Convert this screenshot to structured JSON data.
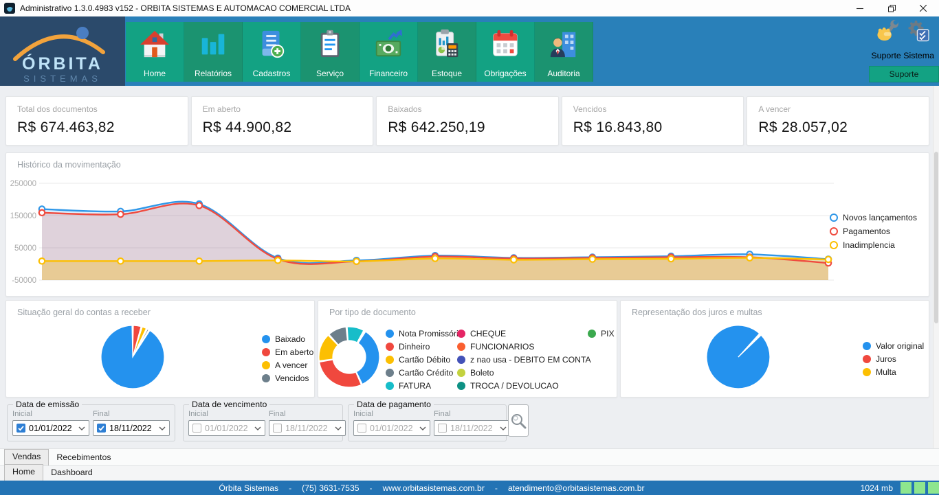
{
  "window": {
    "title": "Administrativo 1.3.0.4983 v152 - ORBITA SISTEMAS E AUTOMACAO COMERCIAL LTDA"
  },
  "header": {
    "logo": {
      "name": "ÓRBITA",
      "tagline": "SISTEMAS"
    },
    "nav": [
      {
        "id": "home",
        "label": "Home"
      },
      {
        "id": "relatorios",
        "label": "Relatórios"
      },
      {
        "id": "cadastros",
        "label": "Cadastros"
      },
      {
        "id": "servico",
        "label": "Serviço"
      },
      {
        "id": "financeiro",
        "label": "Financeiro"
      },
      {
        "id": "estoque",
        "label": "Estoque"
      },
      {
        "id": "obrigacoes",
        "label": "Obrigações"
      },
      {
        "id": "auditoria",
        "label": "Auditoria"
      }
    ],
    "support": {
      "label": "Suporte Sistema",
      "button": "Suporte"
    }
  },
  "kpis": [
    {
      "label": "Total dos documentos",
      "value": "R$ 674.463,82"
    },
    {
      "label": "Em aberto",
      "value": "R$ 44.900,82"
    },
    {
      "label": "Baixados",
      "value": "R$ 642.250,19"
    },
    {
      "label": "Vencidos",
      "value": "R$ 16.843,80"
    },
    {
      "label": "A vencer",
      "value": "R$ 28.057,02"
    }
  ],
  "chart_data": [
    {
      "type": "line",
      "title": "Histórico da movimentação",
      "x": [
        1,
        2,
        3,
        4,
        5,
        6,
        7,
        8,
        9,
        10,
        11
      ],
      "x_labels_shown": false,
      "series": [
        {
          "name": "Novos lançamentos",
          "color": "#2f97e8",
          "fill": "rgba(47,151,232,0.17)",
          "values": [
            170000,
            163000,
            186000,
            18000,
            11000,
            26000,
            19000,
            21000,
            24000,
            30000,
            15000
          ]
        },
        {
          "name": "Pagamentos",
          "color": "#ef4b3f",
          "fill": "rgba(239,75,63,0.17)",
          "values": [
            159000,
            154000,
            181000,
            15000,
            8000,
            23000,
            17000,
            19000,
            21000,
            21000,
            3000
          ]
        },
        {
          "name": "Inadimplencia",
          "color": "#fcbf02",
          "fill": "rgba(252,191,2,0.32)",
          "values": [
            9000,
            9000,
            9000,
            11000,
            8000,
            17000,
            13000,
            15000,
            16000,
            19000,
            14000
          ]
        }
      ],
      "ylim": [
        -50000,
        250000
      ],
      "yticks": [
        250000,
        150000,
        50000,
        -50000
      ],
      "grid": true,
      "legend_position": "right"
    },
    {
      "type": "pie",
      "title": "Situação geral do contas a receber",
      "slices": [
        {
          "label": "Baixado",
          "color": "#2492ee",
          "pct": 91.2
        },
        {
          "label": "Em aberto",
          "color": "#f0483e",
          "pct": 4.6
        },
        {
          "label": "A vencer",
          "color": "#fcbf02",
          "pct": 2.8
        },
        {
          "label": "Vencidos",
          "color": "#6d7f8b",
          "pct": 1.4
        }
      ],
      "draw_order": [
        1,
        2,
        3,
        0
      ],
      "start_angle": -90,
      "legend_position": "right"
    },
    {
      "type": "donut",
      "title": "Por tipo de documento",
      "slices": [
        {
          "label": "Nota Promissória",
          "color": "#2492ee",
          "pct": 34.0
        },
        {
          "label": "Dinheiro",
          "color": "#f0483e",
          "pct": 29.2
        },
        {
          "label": "Cartão Débito",
          "color": "#fcbf02",
          "pct": 15.3
        },
        {
          "label": "Cartão Crédito",
          "color": "#6d7f8b",
          "pct": 10.4
        },
        {
          "label": "FATURA",
          "color": "#17bdc9",
          "pct": 9.5
        },
        {
          "label": "CHEQUE",
          "color": "#e52565",
          "pct": 0.6
        },
        {
          "label": "FUNCIONARIOS",
          "color": "#fa5f30",
          "pct": 0
        },
        {
          "label": "z nao usa - DEBITO EM CONTA",
          "color": "#4352b8",
          "pct": 0
        },
        {
          "label": "Boleto",
          "color": "#c3d23f",
          "pct": 0
        },
        {
          "label": "TROCA / DEVOLUCAO",
          "color": "#0d9184",
          "pct": 0
        },
        {
          "label": "PIX",
          "color": "#3ba94e",
          "pct": 0
        }
      ],
      "draw_order": [
        4,
        5,
        0,
        1,
        2,
        3
      ],
      "legend_columns": [
        [
          0,
          1,
          2,
          3,
          4
        ],
        [
          5,
          6,
          7,
          8,
          9
        ],
        [
          10
        ]
      ],
      "start_angle": -95,
      "legend_position": "right"
    },
    {
      "type": "pie",
      "title": "Representação dos juros e multas",
      "slices": [
        {
          "label": "Valor original",
          "color": "#2492ee",
          "pct": 99.5
        },
        {
          "label": "Juros",
          "color": "#f0483e",
          "pct": 0.3
        },
        {
          "label": "Multa",
          "color": "#fcbf02",
          "pct": 0.2
        }
      ],
      "draw_order": [
        0,
        1,
        2
      ],
      "start_angle": -45,
      "legend_position": "right"
    }
  ],
  "filters": {
    "groups": [
      {
        "title": "Data de emissão",
        "fields": [
          {
            "label": "Inicial",
            "value": "01/01/2022",
            "checked": true
          },
          {
            "label": "Final",
            "value": "18/11/2022",
            "checked": true
          }
        ]
      },
      {
        "title": "Data de vencimento",
        "fields": [
          {
            "label": "Inicial",
            "value": "01/01/2022",
            "checked": false
          },
          {
            "label": "Final",
            "value": "18/11/2022",
            "checked": false
          }
        ]
      },
      {
        "title": "Data de pagamento",
        "fields": [
          {
            "label": "Inicial",
            "value": "01/01/2022",
            "checked": false
          },
          {
            "label": "Final",
            "value": "18/11/2022",
            "checked": false
          }
        ]
      }
    ]
  },
  "tabs": {
    "row1": [
      {
        "label": "Vendas",
        "active": true
      },
      {
        "label": "Recebimentos",
        "active": false
      }
    ],
    "row2": [
      {
        "label": "Home",
        "active": true
      },
      {
        "label": "Dashboard",
        "active": false
      }
    ]
  },
  "footer": {
    "company": "Órbita Sistemas",
    "separator": "-",
    "phone": "(75) 3631-7535",
    "website": "www.orbitasistemas.com.br",
    "email": "atendimento@orbitasistemas.com.br",
    "memory": "1024 mb",
    "indicators": [
      "green",
      "green",
      "green"
    ]
  },
  "colors": {
    "accent_green": "#13a283",
    "nav_tile_alt": "#1b9370",
    "header_blue": "#2980b9",
    "logo_navy": "#2b4a6b",
    "footer_blue": "#2373b4",
    "memory_green": "#8ee68e",
    "checked_blue": "#2e7fd4"
  }
}
